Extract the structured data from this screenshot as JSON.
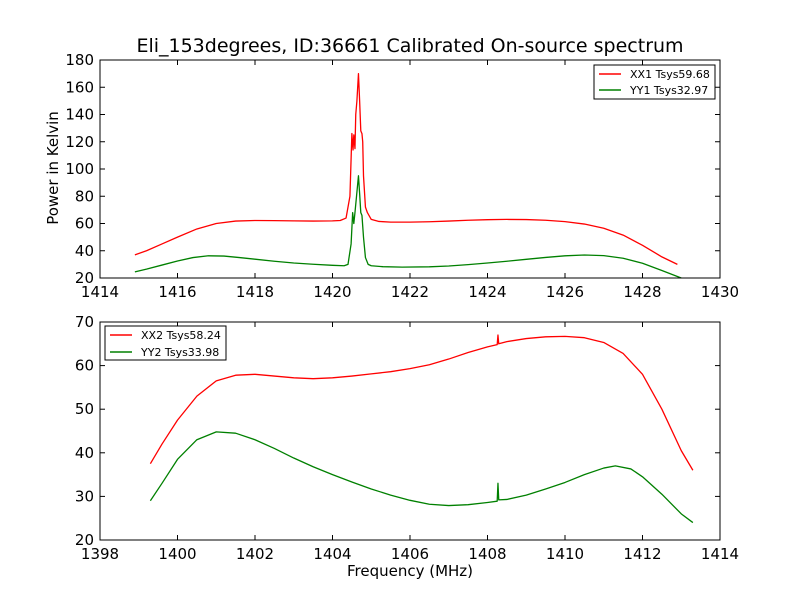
{
  "chart_data": [
    {
      "type": "line",
      "title": "Eli_153degrees, ID:36661 Calibrated On-source spectrum",
      "xlabel": "",
      "ylabel": "Power in Kelvin",
      "xlim": [
        1414,
        1430
      ],
      "ylim": [
        20,
        180
      ],
      "xticks": [
        "1414",
        "1416",
        "1418",
        "1420",
        "1422",
        "1424",
        "1426",
        "1428",
        "1430"
      ],
      "yticks": [
        "20",
        "40",
        "60",
        "80",
        "100",
        "120",
        "140",
        "160",
        "180"
      ],
      "grid": false,
      "legend_position": "top-right",
      "series": [
        {
          "name": "XX1 Tsys59.68",
          "color": "#ff0000",
          "points": [
            [
              1414.9,
              37
            ],
            [
              1415.2,
              40
            ],
            [
              1415.6,
              45
            ],
            [
              1416.0,
              50
            ],
            [
              1416.5,
              56
            ],
            [
              1417.0,
              60
            ],
            [
              1417.5,
              61.8
            ],
            [
              1418.0,
              62.2
            ],
            [
              1418.5,
              62.1
            ],
            [
              1419.0,
              61.9
            ],
            [
              1419.5,
              61.8
            ],
            [
              1420.0,
              61.9
            ],
            [
              1420.2,
              62.2
            ],
            [
              1420.35,
              64
            ],
            [
              1420.45,
              80
            ],
            [
              1420.5,
              126
            ],
            [
              1420.53,
              114
            ],
            [
              1420.55,
              125
            ],
            [
              1420.58,
              115
            ],
            [
              1420.6,
              140
            ],
            [
              1420.63,
              150
            ],
            [
              1420.67,
              170
            ],
            [
              1420.7,
              150
            ],
            [
              1420.73,
              128
            ],
            [
              1420.76,
              126
            ],
            [
              1420.78,
              120
            ],
            [
              1420.8,
              95
            ],
            [
              1420.85,
              72
            ],
            [
              1420.9,
              68
            ],
            [
              1421.0,
              63
            ],
            [
              1421.2,
              61.5
            ],
            [
              1421.5,
              61
            ],
            [
              1422.0,
              61
            ],
            [
              1422.5,
              61.3
            ],
            [
              1423.0,
              61.8
            ],
            [
              1423.5,
              62.4
            ],
            [
              1424.0,
              62.8
            ],
            [
              1424.5,
              63
            ],
            [
              1425.0,
              62.9
            ],
            [
              1425.5,
              62.4
            ],
            [
              1426.0,
              61.4
            ],
            [
              1426.5,
              59.6
            ],
            [
              1427.0,
              56.5
            ],
            [
              1427.5,
              51.5
            ],
            [
              1428.0,
              44
            ],
            [
              1428.5,
              35.5
            ],
            [
              1428.9,
              30
            ]
          ]
        },
        {
          "name": "YY1 Tsys32.97",
          "color": "#008000",
          "points": [
            [
              1414.9,
              24.5
            ],
            [
              1415.2,
              26.5
            ],
            [
              1415.6,
              29.5
            ],
            [
              1416.0,
              32.5
            ],
            [
              1416.4,
              35
            ],
            [
              1416.8,
              36.3
            ],
            [
              1417.2,
              36.1
            ],
            [
              1417.6,
              35
            ],
            [
              1418.0,
              33.8
            ],
            [
              1418.5,
              32.3
            ],
            [
              1419.0,
              31
            ],
            [
              1419.5,
              30.1
            ],
            [
              1420.0,
              29.3
            ],
            [
              1420.3,
              29
            ],
            [
              1420.4,
              30
            ],
            [
              1420.48,
              45
            ],
            [
              1420.52,
              68
            ],
            [
              1420.55,
              60
            ],
            [
              1420.58,
              68
            ],
            [
              1420.62,
              80
            ],
            [
              1420.67,
              95
            ],
            [
              1420.7,
              82
            ],
            [
              1420.73,
              68
            ],
            [
              1420.76,
              66
            ],
            [
              1420.8,
              50
            ],
            [
              1420.85,
              35
            ],
            [
              1420.92,
              30
            ],
            [
              1421.0,
              29
            ],
            [
              1421.3,
              28.3
            ],
            [
              1421.8,
              28
            ],
            [
              1422.5,
              28.2
            ],
            [
              1423.0,
              28.8
            ],
            [
              1423.5,
              29.8
            ],
            [
              1424.0,
              31
            ],
            [
              1424.5,
              32.3
            ],
            [
              1425.0,
              33.7
            ],
            [
              1425.5,
              35.1
            ],
            [
              1426.0,
              36.3
            ],
            [
              1426.5,
              36.9
            ],
            [
              1427.0,
              36.4
            ],
            [
              1427.5,
              34.5
            ],
            [
              1428.0,
              30.8
            ],
            [
              1428.5,
              25.5
            ],
            [
              1429.0,
              20
            ]
          ]
        }
      ]
    },
    {
      "type": "line",
      "title": "",
      "xlabel": "Frequency (MHz)",
      "ylabel": "",
      "xlim": [
        1398,
        1414
      ],
      "ylim": [
        20,
        70
      ],
      "xticks": [
        "1398",
        "1400",
        "1402",
        "1404",
        "1406",
        "1408",
        "1410",
        "1412",
        "1414"
      ],
      "yticks": [
        "20",
        "30",
        "40",
        "50",
        "60",
        "70"
      ],
      "grid": false,
      "legend_position": "top-left",
      "series": [
        {
          "name": "XX2 Tsys58.24",
          "color": "#ff0000",
          "points": [
            [
              1399.3,
              37.5
            ],
            [
              1399.6,
              42
            ],
            [
              1400.0,
              47.5
            ],
            [
              1400.5,
              53
            ],
            [
              1401.0,
              56.5
            ],
            [
              1401.5,
              57.8
            ],
            [
              1402.0,
              58
            ],
            [
              1402.5,
              57.6
            ],
            [
              1403.0,
              57.2
            ],
            [
              1403.5,
              57
            ],
            [
              1404.0,
              57.2
            ],
            [
              1404.5,
              57.6
            ],
            [
              1405.0,
              58.1
            ],
            [
              1405.5,
              58.6
            ],
            [
              1406.0,
              59.3
            ],
            [
              1406.5,
              60.2
            ],
            [
              1407.0,
              61.5
            ],
            [
              1407.5,
              63
            ],
            [
              1408.0,
              64.3
            ],
            [
              1408.25,
              64.8
            ],
            [
              1408.27,
              67
            ],
            [
              1408.29,
              65
            ],
            [
              1408.5,
              65.5
            ],
            [
              1409.0,
              66.2
            ],
            [
              1409.5,
              66.6
            ],
            [
              1410.0,
              66.7
            ],
            [
              1410.5,
              66.4
            ],
            [
              1411.0,
              65.3
            ],
            [
              1411.5,
              62.8
            ],
            [
              1412.0,
              58
            ],
            [
              1412.5,
              50
            ],
            [
              1413.0,
              40.5
            ],
            [
              1413.3,
              36
            ]
          ]
        },
        {
          "name": "YY2 Tsys33.98",
          "color": "#008000",
          "points": [
            [
              1399.3,
              29
            ],
            [
              1399.6,
              33
            ],
            [
              1400.0,
              38.5
            ],
            [
              1400.5,
              43
            ],
            [
              1401.0,
              44.8
            ],
            [
              1401.5,
              44.5
            ],
            [
              1402.0,
              43
            ],
            [
              1402.5,
              41
            ],
            [
              1403.0,
              38.8
            ],
            [
              1403.5,
              36.8
            ],
            [
              1404.0,
              35
            ],
            [
              1404.5,
              33.3
            ],
            [
              1405.0,
              31.7
            ],
            [
              1405.5,
              30.3
            ],
            [
              1406.0,
              29.1
            ],
            [
              1406.5,
              28.2
            ],
            [
              1407.0,
              27.9
            ],
            [
              1407.5,
              28.1
            ],
            [
              1408.0,
              28.6
            ],
            [
              1408.25,
              28.9
            ],
            [
              1408.27,
              33
            ],
            [
              1408.29,
              29.2
            ],
            [
              1408.5,
              29.3
            ],
            [
              1409.0,
              30.3
            ],
            [
              1409.5,
              31.7
            ],
            [
              1410.0,
              33.2
            ],
            [
              1410.5,
              35
            ],
            [
              1411.0,
              36.5
            ],
            [
              1411.3,
              37
            ],
            [
              1411.7,
              36.3
            ],
            [
              1412.0,
              34.5
            ],
            [
              1412.5,
              30.5
            ],
            [
              1413.0,
              26
            ],
            [
              1413.3,
              24
            ]
          ]
        }
      ]
    }
  ]
}
